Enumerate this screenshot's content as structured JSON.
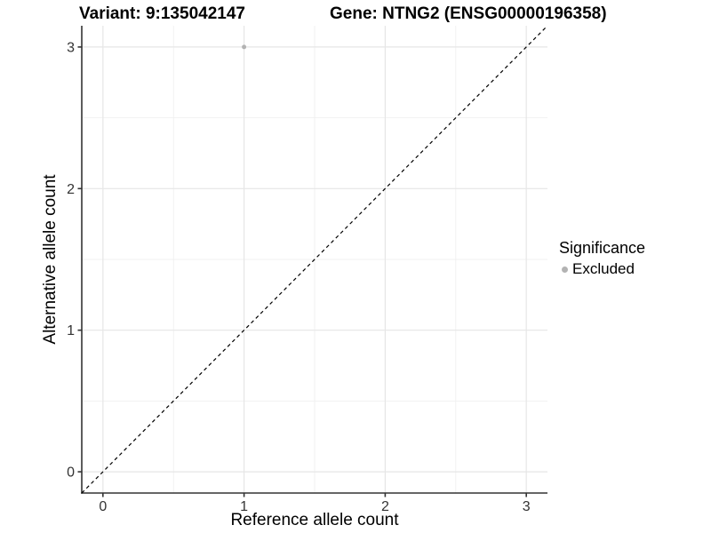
{
  "chart_data": {
    "type": "scatter",
    "title_left": "Variant: 9:135042147",
    "title_right": "Gene: NTNG2 (ENSG00000196358)",
    "xlabel": "Reference allele count",
    "ylabel": "Alternative allele count",
    "xlim": [
      -0.15,
      3.15
    ],
    "ylim": [
      -0.15,
      3.15
    ],
    "x_ticks": [
      0,
      1,
      2,
      3
    ],
    "y_ticks": [
      0,
      1,
      2,
      3
    ],
    "x_minor_ticks": [
      0.5,
      1.5,
      2.5
    ],
    "y_minor_ticks": [
      0.5,
      1.5,
      2.5
    ],
    "grid": true,
    "points": [
      {
        "x": 1,
        "y": 3,
        "significance": "Excluded"
      }
    ],
    "identity_line": {
      "slope": 1,
      "intercept": 0,
      "style": "dashed"
    },
    "legend": {
      "title": "Significance",
      "position": "right",
      "entries": [
        {
          "label": "Excluded",
          "color": "#b3b3b3"
        }
      ]
    },
    "colors": {
      "point": "#b3b3b3",
      "grid_major": "#e6e6e6",
      "grid_minor": "#f0f0f0",
      "axis_line": "#333333",
      "tick_mark": "#333333",
      "tick_label": "#333333",
      "dashed_line": "#000000"
    }
  }
}
